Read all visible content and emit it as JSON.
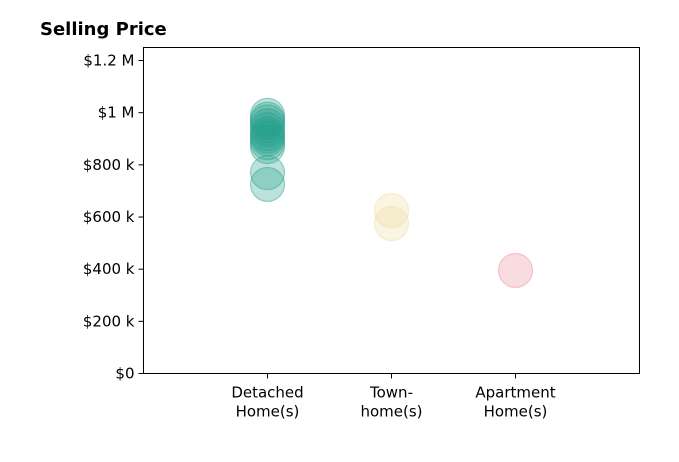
{
  "chart_data": {
    "type": "scatter",
    "title": "Selling Price",
    "xlabel": "",
    "ylabel": "",
    "categories": [
      [
        "Detached",
        "Home(s)"
      ],
      [
        "Town-",
        "home(s)"
      ],
      [
        "Apartment",
        "Home(s)"
      ]
    ],
    "yticks": [
      {
        "value": 0,
        "label": "$0"
      },
      {
        "value": 200000,
        "label": "$200 k"
      },
      {
        "value": 400000,
        "label": "$400 k"
      },
      {
        "value": 600000,
        "label": "$600 k"
      },
      {
        "value": 800000,
        "label": "$800 k"
      },
      {
        "value": 1000000,
        "label": "$1 M"
      },
      {
        "value": 1200000,
        "label": "$1.2 M"
      }
    ],
    "ylim": [
      0,
      1250000
    ],
    "xlim": [
      -1,
      3
    ],
    "grid": false,
    "colors": [
      "#26a08c",
      "#f0d9a0",
      "#eb8c96"
    ],
    "series": [
      {
        "category_index": 0,
        "color": "#26a08c",
        "values": [
          725000,
          770000,
          870000,
          885000,
          900000,
          910000,
          920000,
          935000,
          950000,
          965000,
          975000,
          990000
        ]
      },
      {
        "category_index": 1,
        "color": "#f0d9a0",
        "values": [
          575000,
          625000
        ]
      },
      {
        "category_index": 2,
        "color": "#eb8c96",
        "values": [
          395000
        ]
      }
    ]
  }
}
